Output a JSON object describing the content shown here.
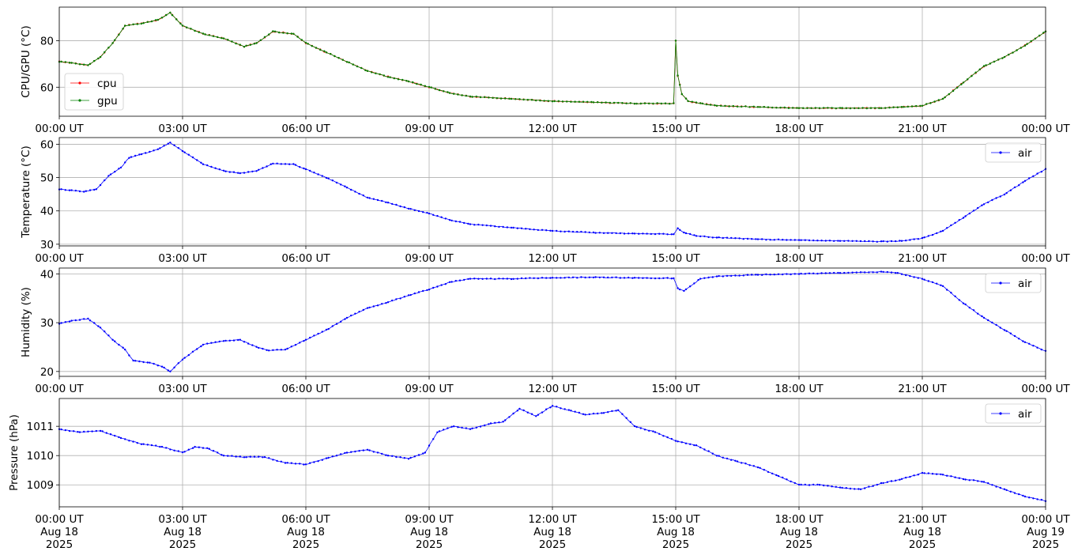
{
  "chart_data": [
    {
      "type": "line",
      "ylabel": "CPU/GPU (°C)",
      "xlim_hours": [
        0,
        24
      ],
      "ylim": [
        47.5,
        94.5
      ],
      "yticks": [
        60,
        80
      ],
      "grid": true,
      "legend_placement": "bottom-left",
      "x_tick_labels": [
        "00:00 UT",
        "03:00 UT",
        "06:00 UT",
        "09:00 UT",
        "12:00 UT",
        "15:00 UT",
        "18:00 UT",
        "21:00 UT",
        "00:00 UT"
      ],
      "series": [
        {
          "name": "cpu",
          "color": "#ff0000",
          "x": [
            0,
            0.3,
            0.7,
            1.0,
            1.3,
            1.6,
            2.0,
            2.4,
            2.7,
            3.0,
            3.5,
            4.0,
            4.5,
            4.8,
            5.2,
            5.7,
            6.0,
            6.5,
            7.0,
            7.5,
            8.0,
            8.5,
            9.0,
            9.5,
            10.0,
            11.0,
            12.0,
            13.0,
            14.0,
            14.95,
            15.0,
            15.05,
            15.15,
            15.3,
            15.6,
            16.0,
            17.0,
            18.0,
            19.0,
            20.0,
            20.5,
            21.0,
            21.5,
            22.0,
            22.5,
            23.0,
            23.5,
            24.0
          ],
          "values": [
            71,
            70.5,
            69.5,
            73,
            79,
            86.5,
            87.5,
            89,
            92,
            86.5,
            83,
            81,
            77.5,
            79,
            84,
            83,
            79,
            75,
            71,
            67,
            64.5,
            62.5,
            60,
            57.5,
            56,
            55,
            54,
            53.5,
            53,
            53,
            80,
            65,
            57,
            54,
            53,
            52,
            51.5,
            51,
            51,
            51,
            51.5,
            52,
            55,
            62,
            69,
            73,
            78,
            84
          ]
        },
        {
          "name": "gpu",
          "color": "#008000",
          "x": [
            0,
            0.3,
            0.7,
            1.0,
            1.3,
            1.6,
            2.0,
            2.4,
            2.7,
            3.0,
            3.5,
            4.0,
            4.5,
            4.8,
            5.2,
            5.7,
            6.0,
            6.5,
            7.0,
            7.5,
            8.0,
            8.5,
            9.0,
            9.5,
            10.0,
            11.0,
            12.0,
            13.0,
            14.0,
            14.95,
            15.0,
            15.05,
            15.15,
            15.3,
            15.6,
            16.0,
            17.0,
            18.0,
            19.0,
            20.0,
            20.5,
            21.0,
            21.5,
            22.0,
            22.5,
            23.0,
            23.5,
            24.0
          ],
          "values": [
            71,
            70.5,
            69.5,
            73,
            79,
            86.5,
            87.5,
            89,
            92,
            86.5,
            83,
            81,
            77.5,
            79,
            84,
            83,
            79,
            75,
            71,
            67,
            64.5,
            62.5,
            60,
            57.5,
            56,
            55,
            54,
            53.5,
            53,
            53,
            80,
            65,
            57,
            54,
            53,
            52,
            51.5,
            51,
            51,
            51,
            51.5,
            52,
            55,
            62,
            69,
            73,
            78,
            84
          ]
        }
      ]
    },
    {
      "type": "line",
      "ylabel": "Temperature (°C)",
      "xlim_hours": [
        0,
        24
      ],
      "ylim": [
        29.5,
        62
      ],
      "yticks": [
        30,
        40,
        50,
        60
      ],
      "grid": true,
      "legend_placement": "top-right",
      "x_tick_labels": [
        "00:00 UT",
        "03:00 UT",
        "06:00 UT",
        "09:00 UT",
        "12:00 UT",
        "15:00 UT",
        "18:00 UT",
        "21:00 UT",
        "00:00 UT"
      ],
      "series": [
        {
          "name": "air",
          "color": "#0000ff",
          "x": [
            0,
            0.3,
            0.6,
            0.9,
            1.2,
            1.5,
            1.7,
            2.0,
            2.4,
            2.7,
            3.0,
            3.5,
            4.0,
            4.4,
            4.8,
            5.2,
            5.7,
            6.0,
            6.5,
            7.0,
            7.5,
            8.0,
            8.5,
            9.0,
            9.5,
            10.0,
            11.0,
            12.0,
            13.0,
            14.0,
            14.95,
            15.05,
            15.2,
            15.5,
            16.0,
            17.0,
            18.0,
            19.0,
            20.0,
            20.5,
            21.0,
            21.5,
            22.0,
            22.5,
            23.0,
            23.5,
            24.0
          ],
          "values": [
            46.5,
            46.2,
            45.8,
            46.5,
            50.5,
            53,
            56,
            57,
            58.5,
            60.5,
            58,
            54,
            52,
            51.3,
            52,
            54.2,
            54,
            52.5,
            50,
            47,
            44,
            42.5,
            40.7,
            39.2,
            37.3,
            36,
            35,
            34,
            33.5,
            33.2,
            33,
            34.8,
            33.5,
            32.5,
            32,
            31.5,
            31.2,
            31,
            30.8,
            31,
            31.8,
            34,
            38,
            42,
            45,
            49,
            52.5
          ]
        }
      ]
    },
    {
      "type": "line",
      "ylabel": "Humidity (%)",
      "xlim_hours": [
        0,
        24
      ],
      "ylim": [
        19,
        41.2
      ],
      "yticks": [
        20,
        30,
        40
      ],
      "grid": true,
      "legend_placement": "top-right",
      "x_tick_labels": [
        "00:00 UT",
        "03:00 UT",
        "06:00 UT",
        "09:00 UT",
        "12:00 UT",
        "15:00 UT",
        "18:00 UT",
        "21:00 UT",
        "00:00 UT"
      ],
      "series": [
        {
          "name": "air",
          "color": "#0000ff",
          "x": [
            0,
            0.3,
            0.7,
            1.0,
            1.3,
            1.6,
            1.8,
            2.2,
            2.5,
            2.7,
            3.0,
            3.5,
            4.0,
            4.4,
            4.8,
            5.1,
            5.5,
            6.0,
            6.5,
            7.0,
            7.5,
            8.0,
            8.5,
            9.0,
            9.5,
            10.0,
            11.0,
            12.0,
            13.0,
            14.0,
            14.95,
            15.05,
            15.2,
            15.6,
            16.0,
            17.0,
            18.0,
            19.0,
            20.0,
            20.4,
            21.0,
            21.5,
            22.0,
            22.5,
            23.0,
            23.5,
            24.0
          ],
          "values": [
            29.8,
            30.4,
            30.8,
            29,
            26.5,
            24.5,
            22.2,
            21.8,
            21,
            20,
            22.5,
            25.5,
            26.3,
            26.5,
            25,
            24.3,
            24.5,
            26.5,
            28.5,
            31,
            33,
            34.2,
            35.6,
            36.8,
            38.3,
            39,
            39,
            39.2,
            39.3,
            39.2,
            39.1,
            37,
            36.5,
            39,
            39.5,
            39.8,
            40,
            40.2,
            40.4,
            40.2,
            39,
            37.5,
            34,
            31,
            28.5,
            26,
            24.2
          ]
        }
      ]
    },
    {
      "type": "line",
      "ylabel": "Pressure (hPa)",
      "xlim_hours": [
        0,
        24
      ],
      "ylim": [
        1008.25,
        1011.95
      ],
      "yticks": [
        1009,
        1010,
        1011
      ],
      "grid": true,
      "legend_placement": "top-right",
      "x_tick_labels": [
        "00:00 UT\nAug 18\n2025",
        "03:00 UT\nAug 18\n2025",
        "06:00 UT\nAug 18\n2025",
        "09:00 UT\nAug 18\n2025",
        "12:00 UT\nAug 18\n2025",
        "15:00 UT\nAug 18\n2025",
        "18:00 UT\nAug 18\n2025",
        "21:00 UT\nAug 18\n2025",
        "00:00 UT\nAug 19\n2025"
      ],
      "series": [
        {
          "name": "air",
          "color": "#0000ff",
          "x": [
            0,
            0.5,
            1.0,
            1.5,
            2.0,
            2.5,
            3.0,
            3.3,
            3.6,
            4.0,
            4.5,
            5.0,
            5.5,
            6.0,
            6.5,
            7.0,
            7.5,
            8.0,
            8.5,
            8.9,
            9.2,
            9.6,
            10.0,
            10.5,
            10.8,
            11.2,
            11.6,
            12.0,
            12.4,
            12.8,
            13.2,
            13.6,
            14.0,
            14.5,
            15.0,
            15.5,
            16.0,
            16.5,
            17.0,
            17.5,
            18.0,
            18.5,
            19.0,
            19.5,
            20.0,
            20.5,
            21.0,
            21.5,
            22.0,
            22.5,
            23.0,
            23.5,
            24.0
          ],
          "values": [
            1010.9,
            1010.8,
            1010.85,
            1010.6,
            1010.4,
            1010.3,
            1010.1,
            1010.3,
            1010.25,
            1010.0,
            1009.95,
            1009.95,
            1009.75,
            1009.7,
            1009.9,
            1010.1,
            1010.2,
            1010.0,
            1009.9,
            1010.1,
            1010.8,
            1011.0,
            1010.9,
            1011.1,
            1011.15,
            1011.6,
            1011.35,
            1011.7,
            1011.55,
            1011.4,
            1011.45,
            1011.55,
            1011.0,
            1010.8,
            1010.5,
            1010.35,
            1010.0,
            1009.8,
            1009.6,
            1009.3,
            1009.0,
            1009.0,
            1008.9,
            1008.85,
            1009.05,
            1009.2,
            1009.4,
            1009.35,
            1009.2,
            1009.1,
            1008.85,
            1008.6,
            1008.45
          ]
        }
      ]
    }
  ]
}
